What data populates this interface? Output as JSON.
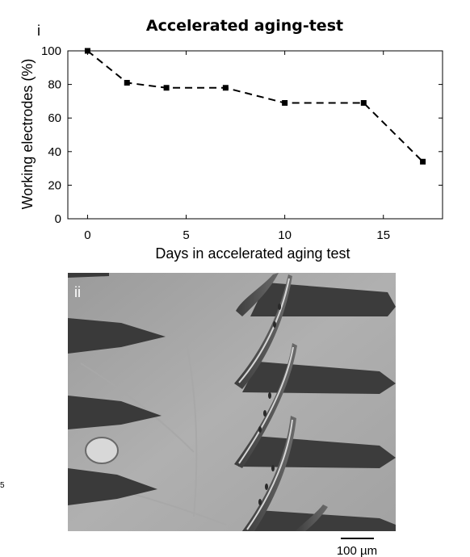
{
  "chart_data": {
    "type": "line",
    "title": "Accelerated aging-test",
    "panel_label": "i",
    "xlabel": "Days in accelerated aging test",
    "ylabel": "Working electrodes (%)",
    "xlim": [
      -1,
      18
    ],
    "ylim": [
      0,
      100
    ],
    "xticks": [
      0,
      5,
      10,
      15
    ],
    "yticks": [
      0,
      20,
      40,
      60,
      80,
      100
    ],
    "line_style": "dashed",
    "marker": "square",
    "color": "#000000",
    "series": [
      {
        "x": [
          0,
          2,
          4,
          7,
          10,
          14,
          17
        ],
        "y": [
          100,
          81,
          78,
          78,
          69,
          69,
          34
        ]
      }
    ]
  },
  "micrograph": {
    "panel_label": "ii",
    "scale_bar": "100 µm",
    "description_icon": "sem-micrograph-image"
  },
  "margin_text": "5"
}
